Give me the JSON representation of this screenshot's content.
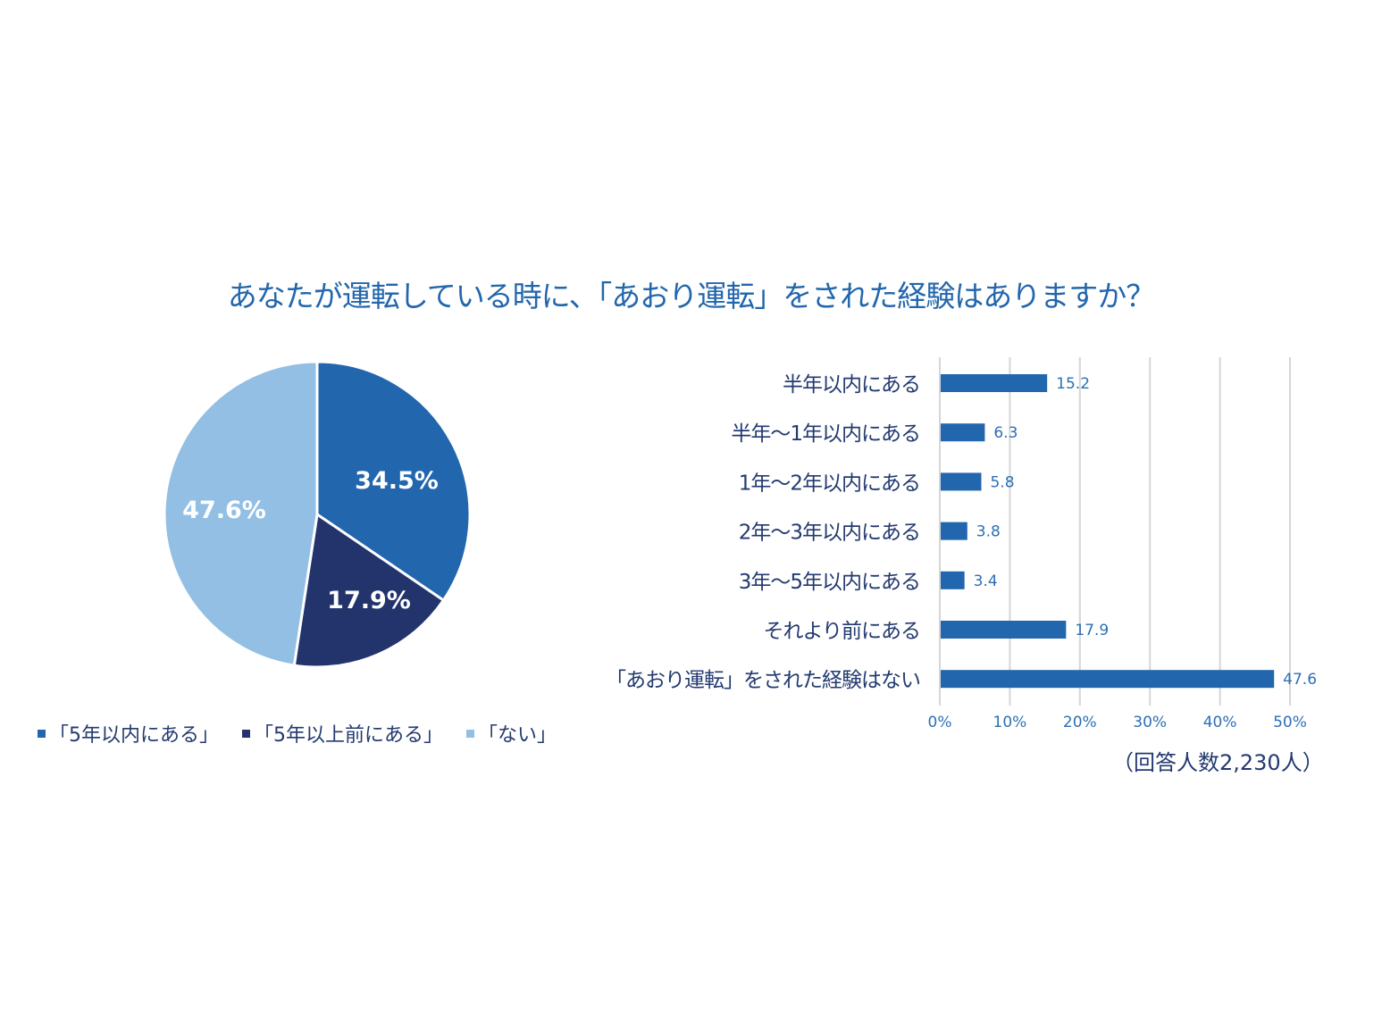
{
  "title": "あなたが運転している時に、「あおり運転」をされた経験はありますか？",
  "chart_data": [
    {
      "type": "pie",
      "categories": [
        "「5年以内にある」",
        "「5年以上前にある」",
        "「ない」"
      ],
      "values": [
        34.5,
        17.9,
        47.6
      ],
      "labels": [
        "34.5%",
        "17.9%",
        "47.6%"
      ],
      "colors": [
        "#2266ad",
        "#23346c",
        "#92bfe3"
      ],
      "start": "12 o'clock, clockwise",
      "legend": "bottom"
    },
    {
      "type": "bar",
      "orientation": "horizontal",
      "categories": [
        "半年以内にある",
        "半年～1年以内にある",
        "1年～2年以内にある",
        "2年～3年以内にある",
        "3年～5年以内にある",
        "それより前にある",
        "「あおり運転」をされた経験はない"
      ],
      "values": [
        15.2,
        6.3,
        5.8,
        3.8,
        3.4,
        17.9,
        47.6
      ],
      "value_labels": [
        "15.2",
        "6.3",
        "5.8",
        "3.8",
        "3.4",
        "17.9",
        "47.6"
      ],
      "xlim": [
        0,
        50
      ],
      "xticks": [
        "0%",
        "10%",
        "20%",
        "30%",
        "40%",
        "50%"
      ],
      "grid": true,
      "color": "#2266ad",
      "note": "（回答人数2,230人）"
    }
  ]
}
